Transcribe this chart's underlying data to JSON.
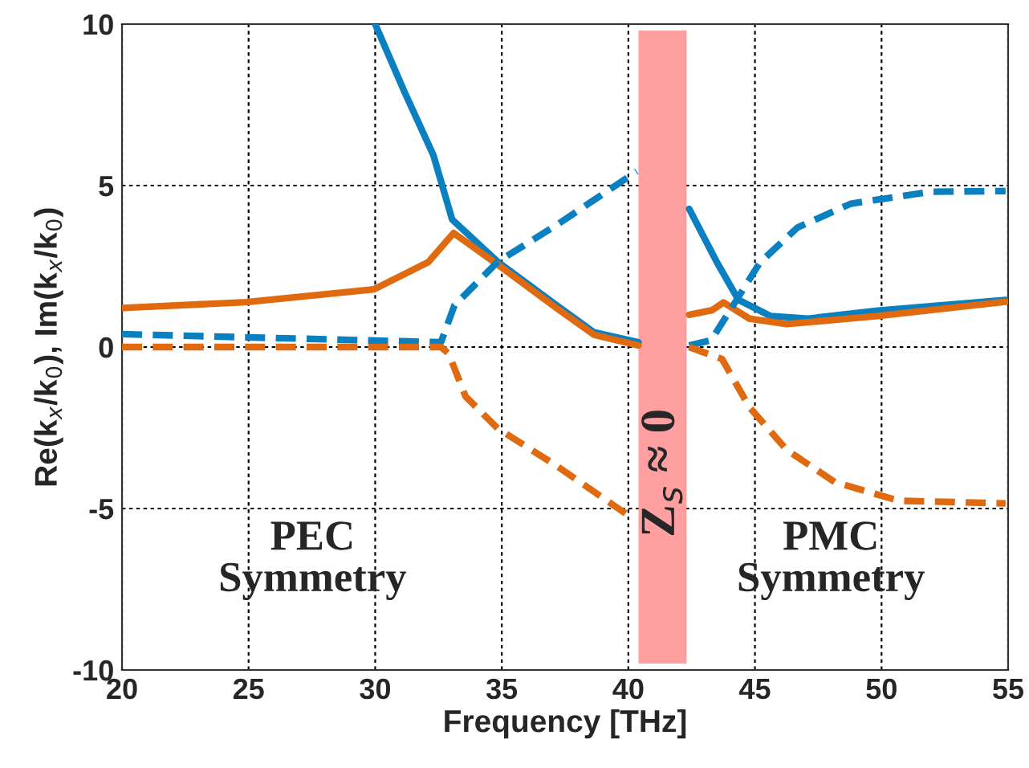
{
  "chart_data": {
    "type": "line",
    "xlabel": "Frequency [THz]",
    "ylabel": "Re(k$_{x}$/k$_{0}$), Im(k$_{x}$/k$_{0}$)",
    "xlim": [
      20,
      55
    ],
    "ylim": [
      -10,
      10
    ],
    "xticks": [
      20,
      25,
      30,
      35,
      40,
      45,
      50,
      55
    ],
    "yticks": [
      -10,
      -5,
      0,
      5,
      10
    ],
    "grid": true,
    "series": [
      {
        "color": "#0a80c0",
        "line_style": "solid",
        "x": [
          30.0,
          31.14,
          32.3,
          33.04,
          34.84,
          37.17,
          38.64,
          40.4,
          41.4,
          42.4,
          43.5,
          44.35,
          45.62,
          47.1,
          49.85,
          54.9
        ],
        "values": [
          10,
          7.93,
          5.94,
          3.95,
          2.64,
          1.29,
          0.46,
          0.15,
          null,
          4.28,
          2.62,
          1.46,
          0.96,
          0.88,
          1.13,
          1.46
        ]
      },
      {
        "color": "#e06a10",
        "line_style": "solid",
        "x": [
          20,
          24.9,
          29.96,
          32.1,
          33.1,
          34.84,
          37.17,
          38.64,
          40.4,
          41.4,
          42.4,
          43.3,
          43.76,
          44.78,
          46.25,
          49.85,
          54.9
        ],
        "values": [
          1.21,
          1.39,
          1.79,
          2.63,
          3.53,
          2.55,
          1.2,
          0.38,
          0.05,
          null,
          1.0,
          1.14,
          1.38,
          0.88,
          0.71,
          0.96,
          1.4
        ]
      },
      {
        "color": "#0a80c0",
        "line_style": "dashed",
        "x": [
          20,
          30,
          32.6,
          33.13,
          34.84,
          37.17,
          40.33,
          41.4,
          42.4,
          43.27,
          44.14,
          45.2,
          46.68,
          48.79,
          51.96,
          54.9
        ],
        "values": [
          0.4,
          0.2,
          0.15,
          1.29,
          2.64,
          3.78,
          5.44,
          null,
          0.05,
          0.21,
          1.29,
          2.62,
          3.7,
          4.44,
          4.81,
          4.83
        ]
      },
      {
        "color": "#e06a10",
        "line_style": "dashed",
        "x": [
          20,
          32.6,
          32.9,
          33.57,
          34.84,
          37.17,
          40.23,
          41.4,
          42.4,
          43.7,
          44.78,
          46.25,
          48.15,
          50.69,
          54.9
        ],
        "values": [
          0,
          0,
          -0.2,
          -1.53,
          -2.52,
          -3.68,
          -5.34,
          null,
          0,
          -0.37,
          -1.86,
          -3.18,
          -4.18,
          -4.76,
          -4.84
        ]
      }
    ],
    "bands": [
      {
        "axis": "x",
        "from": 40.4,
        "to": 42.3,
        "label": "Z$_{s}$ ≈ 0",
        "color": "#ff9f9f"
      }
    ],
    "annotations": [
      "PEC\nSymmetry",
      "PMC\nSymmetry"
    ]
  }
}
